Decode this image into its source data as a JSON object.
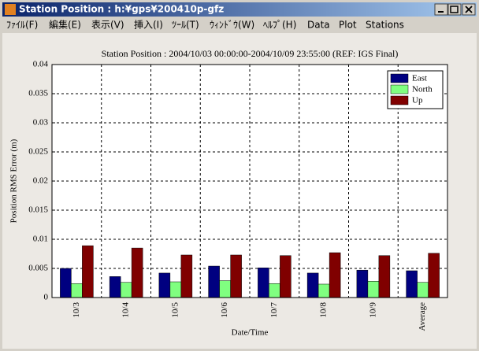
{
  "window": {
    "title": "Station Position : h:¥gps¥200410p-gfz"
  },
  "menu": [
    "ﾌｧｲﾙ(F)",
    "編集(E)",
    "表示(V)",
    "挿入(I)",
    "ﾂｰﾙ(T)",
    "ｳｨﾝﾄﾞｳ(W)",
    "ﾍﾙﾌﾟ(H)",
    "Data",
    "Plot",
    "Stations"
  ],
  "chart_data": {
    "type": "bar",
    "title": "Station Position : 2004/10/03 00:00:00-2004/10/09 23:55:00 (REF: IGS Final)",
    "x_label": "Date/Time",
    "y_label": "Position RMS Error (m)",
    "categories": [
      "10/3",
      "10/4",
      "10/5",
      "10/6",
      "10/7",
      "10/8",
      "10/9",
      "Average"
    ],
    "series": [
      {
        "name": "East",
        "color": "#000080",
        "values": [
          0.005,
          0.0036,
          0.0042,
          0.0054,
          0.0051,
          0.0042,
          0.0047,
          0.0046
        ]
      },
      {
        "name": "North",
        "color": "#80ff80",
        "values": [
          0.0024,
          0.0026,
          0.0027,
          0.0029,
          0.0024,
          0.0023,
          0.0028,
          0.0026
        ]
      },
      {
        "name": "Up",
        "color": "#800000",
        "values": [
          0.0089,
          0.0085,
          0.0073,
          0.0073,
          0.0072,
          0.0077,
          0.0072,
          0.0076
        ]
      }
    ],
    "ylim": [
      0,
      0.04
    ],
    "yticks": [
      0,
      0.005,
      0.01,
      0.015,
      0.02,
      0.025,
      0.03,
      0.035,
      0.04
    ],
    "grid": true,
    "legend": "upper-right"
  }
}
